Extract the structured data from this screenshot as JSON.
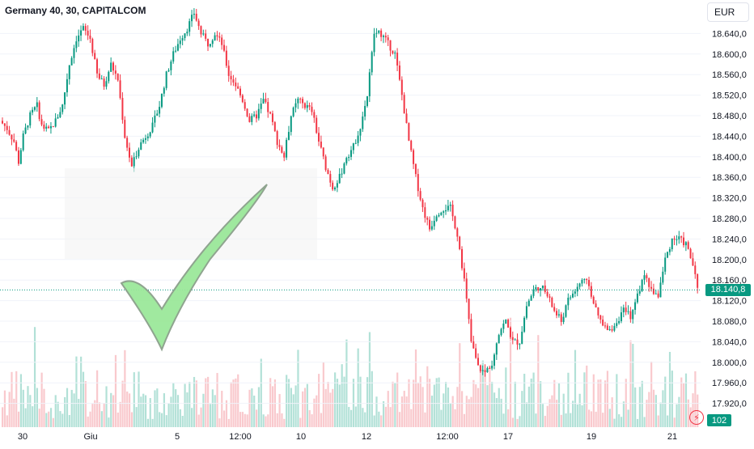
{
  "header": {
    "title": "Germany 40, 30, CAPITALCOM",
    "currency": "EUR"
  },
  "price_scale": {
    "last_price_label": "18.140,8",
    "volume_label": "102",
    "flash_icon": "lightning-icon"
  },
  "colors": {
    "up": "#089981",
    "down": "#f23645",
    "vol_up": "#9fd9cd",
    "vol_down": "#f8bcc0",
    "last_line": "#089981",
    "checkmark": "#9be89a"
  },
  "chart_data": {
    "type": "candlestick",
    "symbol": "Germany 40",
    "interval": "30",
    "source": "CAPITALCOM",
    "currency": "EUR",
    "y_tick_labels": [
      "18.640,0",
      "18.600,0",
      "18.560,0",
      "18.520,0",
      "18.480,0",
      "18.440,0",
      "18.400,0",
      "18.360,0",
      "18.320,0",
      "18.280,0",
      "18.240,0",
      "18.200,0",
      "18.160,0",
      "18.120,0",
      "18.080,0",
      "18.040,0",
      "18.000,0",
      "17.960,0",
      "17.920,0"
    ],
    "y_ticks": [
      18640,
      18600,
      18560,
      18520,
      18480,
      18440,
      18400,
      18360,
      18320,
      18280,
      18240,
      18200,
      18160,
      18120,
      18080,
      18040,
      18000,
      17960,
      17920
    ],
    "ylim": [
      17895,
      18668
    ],
    "x_tick_labels": [
      "30",
      "Giu",
      "5",
      "12:00",
      "10",
      "12",
      "12:00",
      "17",
      "19",
      "21"
    ],
    "last_price": 18140.8,
    "last_volume": 102,
    "trend_path": [
      [
        0,
        18470
      ],
      [
        3,
        18455
      ],
      [
        6,
        18430
      ],
      [
        8,
        18390
      ],
      [
        10,
        18440
      ],
      [
        13,
        18480
      ],
      [
        16,
        18500
      ],
      [
        18,
        18460
      ],
      [
        21,
        18450
      ],
      [
        24,
        18470
      ],
      [
        27,
        18500
      ],
      [
        30,
        18580
      ],
      [
        33,
        18630
      ],
      [
        36,
        18650
      ],
      [
        39,
        18630
      ],
      [
        42,
        18560
      ],
      [
        45,
        18540
      ],
      [
        48,
        18580
      ],
      [
        51,
        18550
      ],
      [
        54,
        18440
      ],
      [
        57,
        18380
      ],
      [
        60,
        18420
      ],
      [
        63,
        18440
      ],
      [
        66,
        18460
      ],
      [
        69,
        18500
      ],
      [
        72,
        18560
      ],
      [
        75,
        18600
      ],
      [
        78,
        18630
      ],
      [
        81,
        18650
      ],
      [
        84,
        18680
      ],
      [
        87,
        18640
      ],
      [
        90,
        18620
      ],
      [
        93,
        18640
      ],
      [
        96,
        18620
      ],
      [
        99,
        18560
      ],
      [
        102,
        18540
      ],
      [
        105,
        18510
      ],
      [
        108,
        18470
      ],
      [
        111,
        18480
      ],
      [
        114,
        18510
      ],
      [
        117,
        18480
      ],
      [
        120,
        18430
      ],
      [
        123,
        18400
      ],
      [
        126,
        18480
      ],
      [
        129,
        18510
      ],
      [
        132,
        18500
      ],
      [
        135,
        18490
      ],
      [
        138,
        18430
      ],
      [
        141,
        18380
      ],
      [
        144,
        18340
      ],
      [
        147,
        18360
      ],
      [
        150,
        18400
      ],
      [
        153,
        18420
      ],
      [
        156,
        18460
      ],
      [
        159,
        18520
      ],
      [
        162,
        18640
      ],
      [
        165,
        18640
      ],
      [
        168,
        18620
      ],
      [
        171,
        18600
      ],
      [
        174,
        18520
      ],
      [
        177,
        18430
      ],
      [
        180,
        18360
      ],
      [
        183,
        18300
      ],
      [
        186,
        18260
      ],
      [
        189,
        18290
      ],
      [
        192,
        18300
      ],
      [
        195,
        18300
      ],
      [
        198,
        18250
      ],
      [
        201,
        18160
      ],
      [
        204,
        18040
      ],
      [
        207,
        17990
      ],
      [
        210,
        17980
      ],
      [
        213,
        18000
      ],
      [
        216,
        18060
      ],
      [
        219,
        18080
      ],
      [
        222,
        18040
      ],
      [
        225,
        18040
      ],
      [
        228,
        18110
      ],
      [
        231,
        18140
      ],
      [
        234,
        18150
      ],
      [
        237,
        18130
      ],
      [
        240,
        18100
      ],
      [
        243,
        18080
      ],
      [
        246,
        18120
      ],
      [
        249,
        18140
      ],
      [
        252,
        18160
      ],
      [
        255,
        18150
      ],
      [
        258,
        18100
      ],
      [
        261,
        18070
      ],
      [
        264,
        18060
      ],
      [
        267,
        18080
      ],
      [
        270,
        18100
      ],
      [
        273,
        18090
      ],
      [
        276,
        18130
      ],
      [
        279,
        18170
      ],
      [
        282,
        18140
      ],
      [
        285,
        18130
      ],
      [
        288,
        18200
      ],
      [
        291,
        18240
      ],
      [
        294,
        18240
      ],
      [
        297,
        18230
      ],
      [
        300,
        18190
      ],
      [
        302,
        18141
      ]
    ]
  }
}
